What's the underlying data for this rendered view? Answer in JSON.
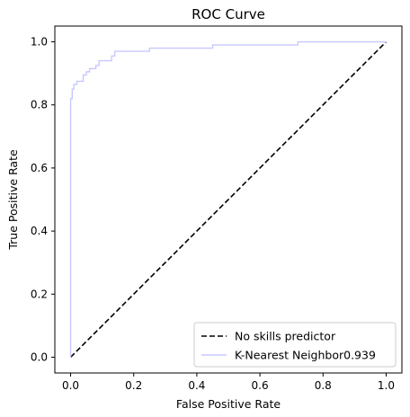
{
  "chart_data": {
    "type": "line",
    "title": "ROC Curve",
    "xlabel": "False Positive Rate",
    "ylabel": "True Positive Rate",
    "xlim": [
      -0.05,
      1.05
    ],
    "ylim": [
      -0.05,
      1.05
    ],
    "xticks": [
      0.0,
      0.2,
      0.4,
      0.6,
      0.8,
      1.0
    ],
    "yticks": [
      0.0,
      0.2,
      0.4,
      0.6,
      0.8,
      1.0
    ],
    "xtick_labels": [
      "0.0",
      "0.2",
      "0.4",
      "0.6",
      "0.8",
      "1.0"
    ],
    "ytick_labels": [
      "0.0",
      "0.2",
      "0.4",
      "0.6",
      "0.8",
      "1.0"
    ],
    "grid": false,
    "legend_position": "lower-right",
    "series": [
      {
        "name": "No skills predictor",
        "color": "#000000",
        "style": "dashed",
        "x": [
          0.0,
          1.0
        ],
        "y": [
          0.0,
          1.0
        ]
      },
      {
        "name": "K-Nearest Neighbor0.939",
        "color": "#c8c8ff",
        "style": "solid",
        "x": [
          0.0,
          0.0,
          0.005,
          0.005,
          0.01,
          0.01,
          0.02,
          0.02,
          0.04,
          0.04,
          0.05,
          0.05,
          0.06,
          0.06,
          0.08,
          0.08,
          0.09,
          0.09,
          0.13,
          0.13,
          0.14,
          0.14,
          0.25,
          0.25,
          0.45,
          0.45,
          0.72,
          0.72,
          1.0
        ],
        "y": [
          0.0,
          0.82,
          0.82,
          0.85,
          0.85,
          0.865,
          0.865,
          0.875,
          0.875,
          0.895,
          0.895,
          0.905,
          0.905,
          0.915,
          0.915,
          0.925,
          0.925,
          0.94,
          0.94,
          0.955,
          0.955,
          0.97,
          0.97,
          0.98,
          0.98,
          0.99,
          0.99,
          1.0,
          1.0
        ]
      }
    ]
  }
}
